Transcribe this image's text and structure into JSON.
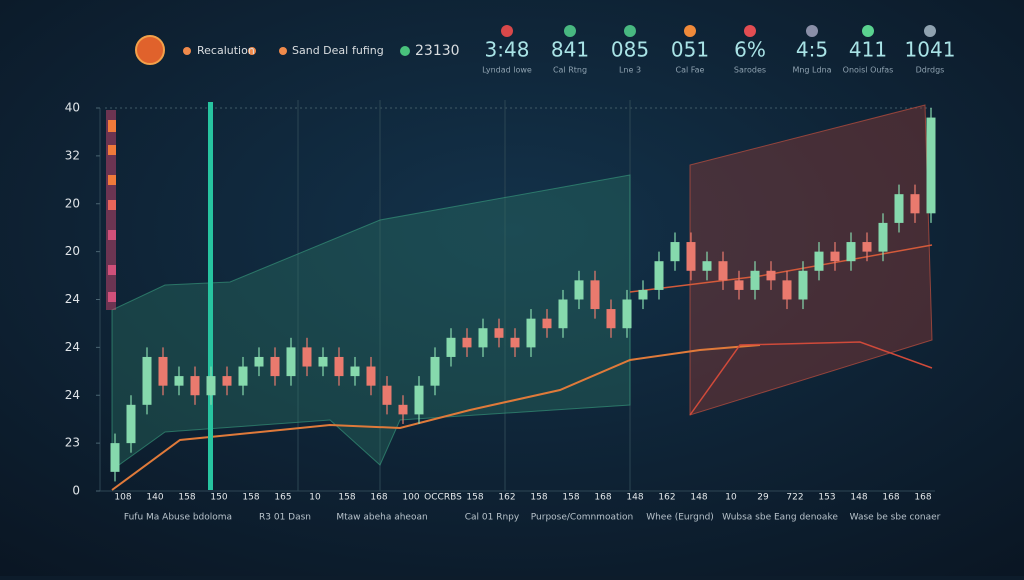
{
  "header": {
    "items": [
      "Recalution",
      "Sand Deal",
      "fufing",
      "23130"
    ],
    "stats": [
      {
        "value": "3:48",
        "caption": "Lyndad lowe"
      },
      {
        "value": "841",
        "caption": "Cal Rtng"
      },
      {
        "value": "085",
        "caption": "Lne 3"
      },
      {
        "value": "051",
        "caption": "Cal Fae"
      },
      {
        "value": "6%",
        "caption": "Sarodes"
      },
      {
        "value": "4:5",
        "caption": "Mng Ldna"
      },
      {
        "value": "411",
        "caption": "Onoisl Oufas"
      },
      {
        "value": "1041",
        "caption": "Ddrdgs"
      }
    ]
  },
  "chart_data": {
    "type": "candlestick",
    "categories": [
      "108",
      null,
      "140",
      null,
      "158",
      null,
      "150",
      null,
      "158",
      null,
      "165",
      null,
      "10",
      null,
      "158",
      null,
      "168",
      null,
      "100",
      null,
      "OCCRBS",
      null,
      "158",
      null,
      "162",
      null,
      "158",
      null,
      "158",
      null,
      "168",
      null,
      "148",
      null,
      "162",
      null,
      "148",
      null,
      "10",
      null,
      "29",
      null,
      "722",
      null,
      "153",
      null,
      "148",
      null,
      "168",
      null,
      "168",
      null
    ],
    "open": [
      2,
      5,
      9,
      14,
      11,
      12,
      10,
      12,
      11,
      13,
      14,
      12,
      15,
      13,
      14,
      12,
      13,
      11,
      9,
      8,
      11,
      14,
      16,
      15,
      17,
      16,
      15,
      18,
      17,
      20,
      22,
      19,
      17,
      20,
      21,
      24,
      26,
      23,
      24,
      22,
      21,
      23,
      22,
      20,
      23,
      25,
      24,
      26,
      25,
      28,
      31,
      29
    ],
    "high": [
      6,
      10,
      15,
      15,
      13,
      13,
      13,
      13,
      14,
      15,
      15,
      16,
      16,
      15,
      15,
      14,
      14,
      12,
      10,
      12,
      15,
      17,
      17,
      18,
      18,
      17,
      19,
      19,
      21,
      23,
      23,
      20,
      21,
      22,
      25,
      27,
      27,
      25,
      25,
      23,
      24,
      24,
      23,
      24,
      26,
      26,
      27,
      27,
      29,
      32,
      32,
      40
    ],
    "low": [
      1,
      4,
      8,
      10,
      10,
      9,
      9,
      10,
      10,
      12,
      11,
      11,
      12,
      12,
      11,
      11,
      10,
      8,
      7,
      7,
      10,
      13,
      14,
      14,
      15,
      14,
      14,
      16,
      16,
      19,
      18,
      16,
      16,
      19,
      20,
      23,
      22,
      22,
      21,
      20,
      20,
      21,
      19,
      19,
      22,
      23,
      23,
      24,
      24,
      27,
      28,
      28
    ],
    "close": [
      5,
      9,
      14,
      11,
      12,
      10,
      12,
      11,
      13,
      14,
      12,
      15,
      13,
      14,
      12,
      13,
      11,
      9,
      8,
      11,
      14,
      16,
      15,
      17,
      16,
      15,
      18,
      17,
      20,
      22,
      19,
      17,
      20,
      21,
      24,
      26,
      23,
      24,
      22,
      21,
      23,
      22,
      20,
      23,
      25,
      24,
      26,
      25,
      28,
      31,
      29,
      39
    ],
    "up_color": "#86d9ad",
    "down_color": "#ea7a6e",
    "ylim": [
      0,
      40
    ],
    "yticks": [
      0,
      {
        "value": 5,
        "label": "23"
      },
      {
        "value": 10,
        "label": "24"
      },
      {
        "value": 15,
        "label": "24"
      },
      {
        "value": 20,
        "label": "24"
      },
      {
        "value": 25,
        "label": "20"
      },
      {
        "value": 30,
        "label": "20"
      },
      {
        "value": 35,
        "label": "32"
      },
      40
    ]
  },
  "footer_labels": [
    "Fufu Ma Abuse bdoloma",
    "R3 01 Dasn",
    "Mtaw abeha aheoan",
    "Cal 01 Rnpy",
    "Purpose/Comnmoation",
    "Whee (Eurgnd)",
    "Wubsa sbe Eang denoake",
    "Wase be sbe conaer"
  ]
}
